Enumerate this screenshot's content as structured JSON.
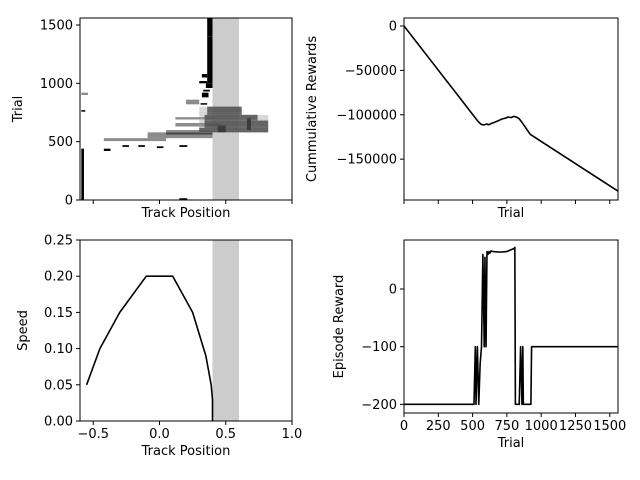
{
  "chart_data": [
    {
      "id": "trial-track",
      "type": "scatter",
      "xlabel": "Track Position",
      "ylabel": "Trial",
      "xlim": [
        -0.6,
        1.0
      ],
      "ylim": [
        0,
        1560
      ],
      "xticks": [],
      "yticks": [
        {
          "v": 0,
          "label": "0"
        },
        {
          "v": 500,
          "label": "500"
        },
        {
          "v": 1000,
          "label": "1000"
        },
        {
          "v": 1500,
          "label": "1500"
        }
      ],
      "goal_band": [
        0.4,
        0.6
      ],
      "color": "#000000",
      "segments": [
        {
          "x": [
            -0.59,
            -0.57
          ],
          "y": [
            0,
            440
          ],
          "style": "solid"
        },
        {
          "x": [
            -0.59,
            -0.56
          ],
          "y": [
            760,
            770
          ],
          "style": "solid"
        },
        {
          "x": [
            -0.59,
            -0.54
          ],
          "y": [
            900,
            920
          ],
          "style": "faded"
        },
        {
          "x": [
            -0.42,
            -0.37
          ],
          "y": [
            420,
            440
          ],
          "style": "solid"
        },
        {
          "x": [
            -0.28,
            -0.23
          ],
          "y": [
            455,
            470
          ],
          "style": "solid"
        },
        {
          "x": [
            -0.16,
            -0.11
          ],
          "y": [
            455,
            470
          ],
          "style": "solid"
        },
        {
          "x": [
            -0.02,
            0.03
          ],
          "y": [
            445,
            460
          ],
          "style": "solid"
        },
        {
          "x": [
            0.15,
            0.21
          ],
          "y": [
            455,
            470
          ],
          "style": "solid"
        },
        {
          "x": [
            0.15,
            0.21
          ],
          "y": [
            0,
            15
          ],
          "style": "solid"
        },
        {
          "x": [
            -0.42,
            0.05
          ],
          "y": [
            505,
            530
          ],
          "style": "faded"
        },
        {
          "x": [
            -0.09,
            0.4
          ],
          "y": [
            530,
            580
          ],
          "style": "faded"
        },
        {
          "x": [
            0.05,
            0.4
          ],
          "y": [
            560,
            600
          ],
          "style": "faded"
        },
        {
          "x": [
            0.12,
            0.45
          ],
          "y": [
            630,
            660
          ],
          "style": "faded"
        },
        {
          "x": [
            0.12,
            0.42
          ],
          "y": [
            690,
            710
          ],
          "style": "faded"
        },
        {
          "x": [
            0.2,
            0.3
          ],
          "y": [
            820,
            860
          ],
          "style": "faded"
        },
        {
          "x": [
            0.3,
            0.82
          ],
          "y": [
            580,
            620
          ],
          "style": "dense"
        },
        {
          "x": [
            0.34,
            0.82
          ],
          "y": [
            620,
            680
          ],
          "style": "dense"
        },
        {
          "x": [
            0.34,
            0.74
          ],
          "y": [
            680,
            730
          ],
          "style": "dense"
        },
        {
          "x": [
            0.36,
            0.62
          ],
          "y": [
            730,
            800
          ],
          "style": "dense"
        },
        {
          "x": [
            0.44,
            0.5
          ],
          "y": [
            580,
            640
          ],
          "style": "solid"
        },
        {
          "x": [
            0.66,
            0.69
          ],
          "y": [
            600,
            700
          ],
          "style": "solid"
        },
        {
          "x": [
            0.32,
            0.37
          ],
          "y": [
            880,
            920
          ],
          "style": "solid"
        },
        {
          "x": [
            0.31,
            0.36
          ],
          "y": [
            820,
            830
          ],
          "style": "solid"
        },
        {
          "x": [
            0.33,
            0.38
          ],
          "y": [
            930,
            945
          ],
          "style": "solid"
        },
        {
          "x": [
            0.35,
            0.4
          ],
          "y": [
            960,
            1000
          ],
          "style": "solid"
        },
        {
          "x": [
            0.36,
            0.4
          ],
          "y": [
            1000,
            1400
          ],
          "style": "solid"
        },
        {
          "x": [
            0.36,
            0.4
          ],
          "y": [
            1400,
            1560
          ],
          "style": "solid"
        },
        {
          "x": [
            0.3,
            0.36
          ],
          "y": [
            1000,
            1020
          ],
          "style": "solid"
        },
        {
          "x": [
            0.32,
            0.36
          ],
          "y": [
            1050,
            1080
          ],
          "style": "solid"
        }
      ]
    },
    {
      "id": "cumulative-rewards",
      "type": "line",
      "xlabel": "Trial",
      "ylabel": "Cummulative Rewards",
      "xlim": [
        0,
        1560
      ],
      "ylim": [
        -196000,
        9000
      ],
      "xticks": [],
      "yticks": [
        {
          "v": 0,
          "label": "0"
        },
        {
          "v": -50000,
          "label": "−50000"
        },
        {
          "v": -100000,
          "label": "−100000"
        },
        {
          "v": -150000,
          "label": "−150000"
        }
      ],
      "color": "#000000",
      "x": [
        0,
        100,
        200,
        300,
        400,
        500,
        540,
        560,
        580,
        600,
        620,
        640,
        660,
        680,
        700,
        720,
        740,
        760,
        780,
        800,
        820,
        840,
        860,
        880,
        900,
        920,
        940,
        1000,
        1100,
        1200,
        1300,
        1400,
        1500,
        1560
      ],
      "y": [
        0,
        -19900,
        -39800,
        -59700,
        -79600,
        -99500,
        -107500,
        -110500,
        -111500,
        -110500,
        -111200,
        -109500,
        -108500,
        -107200,
        -105800,
        -104500,
        -103800,
        -102500,
        -103200,
        -101800,
        -102600,
        -104500,
        -108600,
        -113000,
        -117500,
        -122000,
        -124000,
        -130000,
        -140000,
        -150000,
        -160000,
        -170000,
        -180000,
        -186000
      ]
    },
    {
      "id": "speed-track",
      "type": "line",
      "xlabel": "Track Position",
      "ylabel": "Speed",
      "xlim": [
        -0.6,
        1.0
      ],
      "ylim": [
        0,
        0.25
      ],
      "xticks": [
        {
          "v": -0.5,
          "label": "−0.5"
        },
        {
          "v": 0.0,
          "label": "0.0"
        },
        {
          "v": 0.5,
          "label": "0.5"
        },
        {
          "v": 1.0,
          "label": "1.0"
        }
      ],
      "yticks": [
        {
          "v": 0.0,
          "label": "0.00"
        },
        {
          "v": 0.05,
          "label": "0.05"
        },
        {
          "v": 0.1,
          "label": "0.10"
        },
        {
          "v": 0.15,
          "label": "0.15"
        },
        {
          "v": 0.2,
          "label": "0.20"
        },
        {
          "v": 0.25,
          "label": "0.25"
        }
      ],
      "goal_band": [
        0.4,
        0.6
      ],
      "color": "#000000",
      "x": [
        -0.55,
        -0.45,
        -0.3,
        -0.1,
        0.1,
        0.25,
        0.35,
        0.39,
        0.4,
        0.4
      ],
      "y": [
        0.05,
        0.1,
        0.15,
        0.2,
        0.2,
        0.15,
        0.09,
        0.05,
        0.03,
        0.0
      ]
    },
    {
      "id": "episode-reward",
      "type": "line",
      "xlabel": "Trial",
      "ylabel": "Episode Reward",
      "xlim": [
        0,
        1560
      ],
      "ylim": [
        -215,
        85
      ],
      "xticks": [
        {
          "v": 0,
          "label": "0"
        },
        {
          "v": 250,
          "label": "250"
        },
        {
          "v": 500,
          "label": "500"
        },
        {
          "v": 750,
          "label": "750"
        },
        {
          "v": 1000,
          "label": "1000"
        },
        {
          "v": 1250,
          "label": "1250"
        },
        {
          "v": 1500,
          "label": "1500"
        }
      ],
      "yticks": [
        {
          "v": 0,
          "label": "0"
        },
        {
          "v": -100,
          "label": "−100"
        },
        {
          "v": -200,
          "label": "−200"
        }
      ],
      "color": "#000000",
      "x": [
        0,
        500,
        510,
        520,
        525,
        535,
        545,
        555,
        565,
        575,
        585,
        590,
        598,
        605,
        612,
        620,
        625,
        635,
        650,
        700,
        750,
        780,
        800,
        808,
        812,
        840,
        850,
        860,
        866,
        870,
        880,
        900,
        925,
        930,
        950,
        1000,
        1200,
        1400,
        1560
      ],
      "y": [
        -200,
        -200,
        -200,
        -100,
        -200,
        -100,
        -200,
        -130,
        -100,
        60,
        -100,
        55,
        -100,
        65,
        60,
        65,
        62,
        66,
        65,
        64,
        65,
        68,
        70,
        72,
        -200,
        -200,
        -100,
        -200,
        -100,
        -200,
        -200,
        -200,
        -200,
        -100,
        -100,
        -100,
        -100,
        -100,
        -100
      ]
    }
  ]
}
